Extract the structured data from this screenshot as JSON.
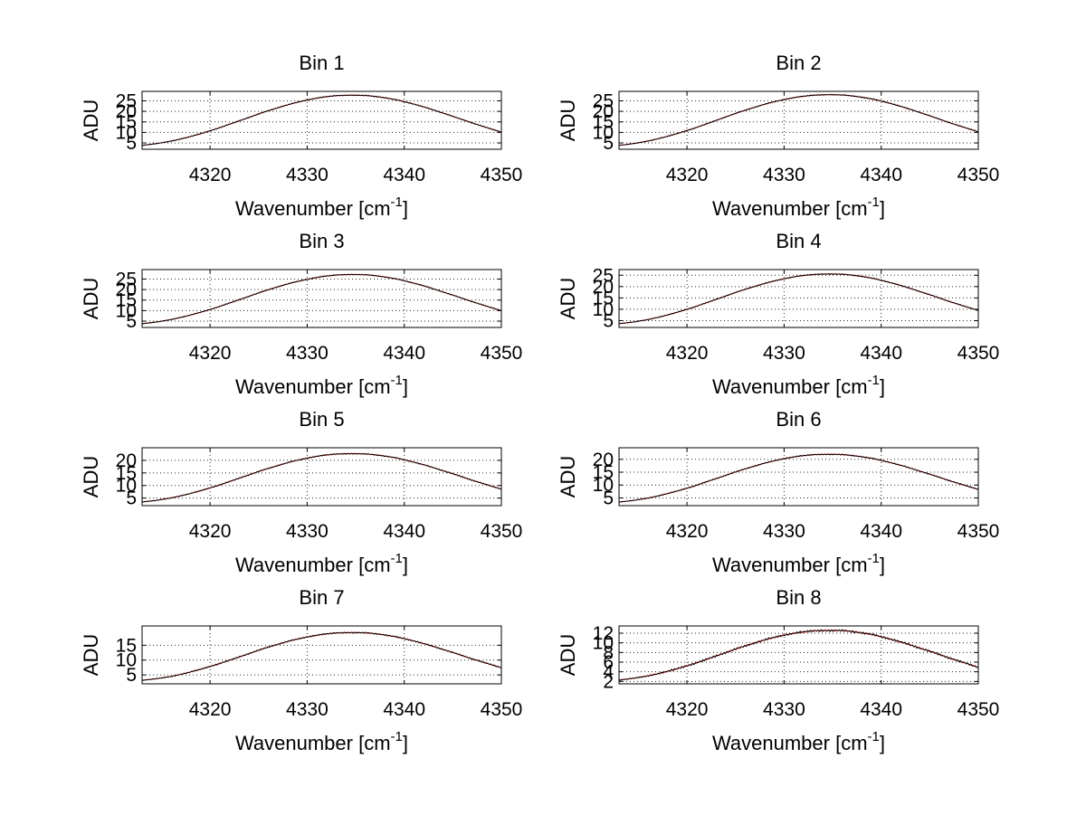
{
  "figure": {
    "background": "#ffffff"
  },
  "chart_data": [
    {
      "type": "line",
      "title": "Bin 1",
      "xlabel": "Wavenumber [cm",
      "xlabel_sup": "-1",
      "xlabel_end": "]",
      "ylabel": "ADU",
      "xlim": [
        4313,
        4350
      ],
      "ylim": [
        2,
        29.5
      ],
      "xticks": [
        4320,
        4330,
        4340,
        4350
      ],
      "yticks": [
        5,
        10,
        15,
        20,
        25
      ],
      "peak": 27.7,
      "peak_x": 4335,
      "width": 11,
      "end": 2.0,
      "grid": true,
      "series": [
        {
          "color": "#ff0000",
          "values": [
            2.3,
            2.9,
            4.1,
            5.8,
            8.0,
            10.6,
            13.4,
            16.3,
            19.1,
            21.6,
            23.8,
            25.6,
            26.9,
            27.6,
            27.8,
            27.4,
            26.5,
            25.0,
            23.1,
            20.8,
            18.3,
            15.6,
            13.0,
            10.5,
            8.2
          ]
        },
        {
          "color": "#000000",
          "values": [
            2.2,
            2.9,
            4.0,
            5.8,
            8.1,
            10.5,
            13.5,
            16.2,
            19.2,
            21.5,
            23.9,
            25.5,
            27.0,
            27.7,
            27.6,
            27.5,
            26.4,
            25.1,
            23.0,
            20.9,
            18.2,
            15.7,
            12.9,
            10.6,
            8.1
          ]
        }
      ]
    },
    {
      "type": "line",
      "title": "Bin 2",
      "xlabel": "Wavenumber [cm",
      "xlabel_sup": "-1",
      "xlabel_end": "]",
      "ylabel": "ADU",
      "xlim": [
        4313,
        4350
      ],
      "ylim": [
        2,
        29.5
      ],
      "xticks": [
        4320,
        4330,
        4340,
        4350
      ],
      "yticks": [
        5,
        10,
        15,
        20,
        25
      ],
      "peak": 28.0,
      "peak_x": 4335,
      "width": 11,
      "end": 2.0,
      "grid": true,
      "series": [
        {
          "color": "#ff0000",
          "values": [
            2.2,
            2.9,
            4.1,
            5.9,
            8.1,
            10.7,
            13.6,
            16.6,
            19.4,
            21.9,
            24.1,
            25.8,
            27.0,
            27.7,
            27.9,
            27.6,
            26.7,
            25.3,
            23.4,
            21.1,
            18.6,
            15.9,
            13.2,
            10.7,
            8.4
          ]
        },
        {
          "color": "#000000",
          "values": [
            2.2,
            2.8,
            4.0,
            5.9,
            8.2,
            10.6,
            13.7,
            16.5,
            19.5,
            21.8,
            24.2,
            25.7,
            27.1,
            27.8,
            27.8,
            27.7,
            26.6,
            25.4,
            23.3,
            21.2,
            18.5,
            16.0,
            13.1,
            10.8,
            8.3
          ]
        }
      ]
    },
    {
      "type": "line",
      "title": "Bin 3",
      "xlabel": "Wavenumber [cm",
      "xlabel_sup": "-1",
      "xlabel_end": "]",
      "ylabel": "ADU",
      "xlim": [
        4313,
        4350
      ],
      "ylim": [
        2,
        29.5
      ],
      "xticks": [
        4320,
        4330,
        4340,
        4350
      ],
      "yticks": [
        5,
        10,
        15,
        20,
        25
      ],
      "peak": 27.2,
      "peak_x": 4335,
      "width": 11,
      "end": 2.0,
      "grid": true,
      "series": [
        {
          "color": "#ff0000",
          "values": [
            2.2,
            2.8,
            4.0,
            5.7,
            7.8,
            10.3,
            13.1,
            15.9,
            18.7,
            21.2,
            23.3,
            25.0,
            26.3,
            27.0,
            27.2,
            26.9,
            26.0,
            24.6,
            22.7,
            20.5,
            18.0,
            15.4,
            12.8,
            10.3,
            8.1
          ]
        },
        {
          "color": "#000000",
          "values": [
            2.1,
            2.8,
            3.9,
            5.7,
            7.9,
            10.2,
            13.2,
            15.8,
            18.8,
            21.1,
            23.4,
            24.9,
            26.4,
            27.1,
            27.0,
            27.0,
            25.9,
            24.7,
            22.6,
            20.6,
            17.9,
            15.5,
            12.7,
            10.4,
            8.0
          ]
        }
      ]
    },
    {
      "type": "line",
      "title": "Bin 4",
      "xlabel": "Wavenumber [cm",
      "xlabel_sup": "-1",
      "xlabel_end": "]",
      "ylabel": "ADU",
      "xlim": [
        4313,
        4350
      ],
      "ylim": [
        2,
        27.5
      ],
      "xticks": [
        4320,
        4330,
        4340,
        4350
      ],
      "yticks": [
        5,
        10,
        15,
        20,
        25
      ],
      "peak": 25.6,
      "peak_x": 4335,
      "width": 11,
      "end": 2.0,
      "grid": true,
      "series": [
        {
          "color": "#ff0000",
          "values": [
            2.2,
            2.7,
            3.8,
            5.4,
            7.4,
            9.8,
            12.4,
            15.1,
            17.7,
            20.0,
            22.0,
            23.6,
            24.8,
            25.4,
            25.6,
            25.3,
            24.5,
            23.2,
            21.4,
            19.3,
            17.0,
            14.6,
            12.1,
            9.8,
            7.7
          ]
        },
        {
          "color": "#000000",
          "values": [
            2.1,
            2.7,
            3.7,
            5.4,
            7.5,
            9.7,
            12.5,
            15.0,
            17.8,
            19.9,
            22.1,
            23.5,
            24.9,
            25.5,
            25.4,
            25.4,
            24.4,
            23.3,
            21.3,
            19.4,
            16.9,
            14.7,
            12.0,
            9.9,
            7.6
          ]
        }
      ]
    },
    {
      "type": "line",
      "title": "Bin 5",
      "xlabel": "Wavenumber [cm",
      "xlabel_sup": "-1",
      "xlabel_end": "]",
      "ylabel": "ADU",
      "xlim": [
        4313,
        4350
      ],
      "ylim": [
        2,
        25
      ],
      "xticks": [
        4320,
        4330,
        4340,
        4350
      ],
      "yticks": [
        5,
        10,
        15,
        20
      ],
      "peak": 22.7,
      "peak_x": 4335,
      "width": 11,
      "end": 2.0,
      "grid": true,
      "series": [
        {
          "color": "#ff0000",
          "values": [
            2.1,
            2.6,
            3.6,
            5.0,
            6.8,
            8.9,
            11.2,
            13.6,
            15.9,
            17.9,
            19.7,
            21.1,
            22.1,
            22.6,
            22.7,
            22.4,
            21.7,
            20.6,
            19.0,
            17.2,
            15.2,
            13.1,
            10.9,
            8.9,
            7.0
          ]
        },
        {
          "color": "#000000",
          "values": [
            2.1,
            2.6,
            3.5,
            5.0,
            6.9,
            8.8,
            11.3,
            13.5,
            16.0,
            17.8,
            19.8,
            21.0,
            22.2,
            22.7,
            22.5,
            22.5,
            21.6,
            20.7,
            18.9,
            17.3,
            15.1,
            13.2,
            10.8,
            9.0,
            6.9
          ]
        }
      ]
    },
    {
      "type": "line",
      "title": "Bin 6",
      "xlabel": "Wavenumber [cm",
      "xlabel_sup": "-1",
      "xlabel_end": "]",
      "ylabel": "ADU",
      "xlim": [
        4313,
        4350
      ],
      "ylim": [
        2,
        24.5
      ],
      "xticks": [
        4320,
        4330,
        4340,
        4350
      ],
      "yticks": [
        5,
        10,
        15,
        20
      ],
      "peak": 22.0,
      "peak_x": 4335,
      "width": 11,
      "end": 2.0,
      "grid": true,
      "series": [
        {
          "color": "#ff0000",
          "values": [
            2.1,
            2.6,
            3.5,
            4.9,
            6.6,
            8.6,
            10.9,
            13.2,
            15.4,
            17.4,
            19.1,
            20.5,
            21.4,
            21.9,
            22.0,
            21.7,
            21.0,
            19.9,
            18.4,
            16.7,
            14.7,
            12.7,
            10.6,
            8.6,
            6.8
          ]
        },
        {
          "color": "#000000",
          "values": [
            2.1,
            2.6,
            3.4,
            4.9,
            6.7,
            8.5,
            11.0,
            13.1,
            15.5,
            17.3,
            19.2,
            20.4,
            21.5,
            22.0,
            21.8,
            21.8,
            20.9,
            20.0,
            18.3,
            16.8,
            14.6,
            12.8,
            10.5,
            8.7,
            6.7
          ]
        }
      ]
    },
    {
      "type": "line",
      "title": "Bin 7",
      "xlabel": "Wavenumber [cm",
      "xlabel_sup": "-1",
      "xlabel_end": "]",
      "ylabel": "ADU",
      "xlim": [
        4313,
        4350
      ],
      "ylim": [
        2,
        21.5
      ],
      "xticks": [
        4320,
        4330,
        4340,
        4350
      ],
      "yticks": [
        5,
        10,
        15
      ],
      "peak": 19.3,
      "peak_x": 4335,
      "width": 11,
      "end": 2.0,
      "grid": true,
      "series": [
        {
          "color": "#ff0000",
          "values": [
            2.1,
            2.5,
            3.2,
            4.4,
            5.9,
            7.7,
            9.6,
            11.6,
            13.6,
            15.3,
            16.8,
            18.0,
            18.8,
            19.2,
            19.3,
            19.1,
            18.5,
            17.5,
            16.2,
            14.7,
            13.0,
            11.2,
            9.4,
            7.7,
            6.1
          ]
        },
        {
          "color": "#000000",
          "values": [
            2.0,
            2.5,
            3.1,
            4.4,
            6.0,
            7.6,
            9.7,
            11.5,
            13.7,
            15.2,
            16.9,
            17.9,
            18.9,
            19.3,
            19.1,
            19.2,
            18.4,
            17.6,
            16.1,
            14.8,
            12.9,
            11.3,
            9.3,
            7.8,
            6.0
          ]
        }
      ]
    },
    {
      "type": "line",
      "title": "Bin 8",
      "xlabel": "Wavenumber [cm",
      "xlabel_sup": "-1",
      "xlabel_end": "]",
      "ylabel": "ADU",
      "xlim": [
        4313,
        4350
      ],
      "ylim": [
        1.5,
        13.5
      ],
      "xticks": [
        4320,
        4330,
        4340,
        4350
      ],
      "yticks": [
        2,
        4,
        6,
        8,
        10,
        12
      ],
      "peak": 12.6,
      "peak_x": 4335,
      "width": 11,
      "end": 1.5,
      "grid": true,
      "series": [
        {
          "color": "#ff0000",
          "values": [
            1.6,
            1.9,
            2.4,
            3.1,
            4.0,
            5.1,
            6.3,
            7.6,
            8.8,
            9.9,
            10.9,
            11.7,
            12.2,
            12.5,
            12.6,
            12.5,
            12.1,
            11.5,
            10.6,
            9.6,
            8.5,
            7.4,
            6.2,
            5.1,
            4.0
          ]
        },
        {
          "color": "#000000",
          "values": [
            1.5,
            1.9,
            2.3,
            3.1,
            4.1,
            5.0,
            6.4,
            7.5,
            8.9,
            9.8,
            11.0,
            11.6,
            12.3,
            12.6,
            12.4,
            12.6,
            12.0,
            11.6,
            10.5,
            9.7,
            8.4,
            7.5,
            6.1,
            5.2,
            3.9
          ]
        }
      ]
    }
  ]
}
